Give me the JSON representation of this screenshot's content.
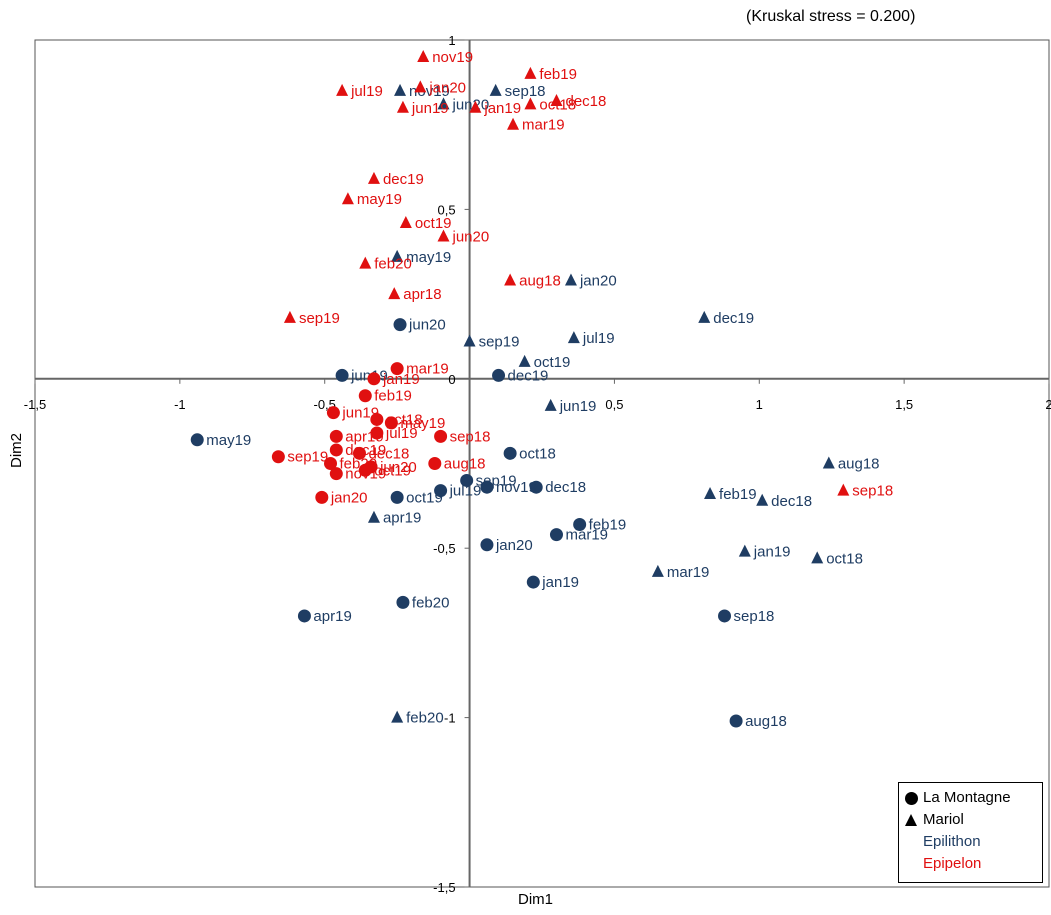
{
  "annotation": "(Kruskal stress  = 0.200)",
  "legend": {
    "site1": "La Montagne",
    "site2": "Mariol",
    "group1": "Epilithon",
    "group2": "Epipelon"
  },
  "colors": {
    "Epilithon": "#1f3d63",
    "Epipelon": "#e01010"
  },
  "chart_data": {
    "type": "scatter",
    "xlabel": "Dim1",
    "ylabel": "Dim2",
    "xlim": [
      -1.5,
      2
    ],
    "ylim": [
      -1.5,
      1
    ],
    "xticks": [
      {
        "v": -1.5,
        "t": "-1,5"
      },
      {
        "v": -1,
        "t": "-1"
      },
      {
        "v": -0.5,
        "t": "-0,5"
      },
      {
        "v": 0.5,
        "t": "0,5"
      },
      {
        "v": 1,
        "t": "1"
      },
      {
        "v": 1.5,
        "t": "1,5"
      },
      {
        "v": 2,
        "t": "2"
      }
    ],
    "yticks": [
      {
        "v": 1,
        "t": "1"
      },
      {
        "v": 0.5,
        "t": "0,5"
      },
      {
        "v": 0,
        "t": "0"
      },
      {
        "v": -0.5,
        "t": "-0,5"
      },
      {
        "v": -1,
        "t": "-1"
      },
      {
        "v": -1.5,
        "t": "-1,5"
      }
    ],
    "series": [
      {
        "name": "La Montagne - Epilithon",
        "site": "La Montagne",
        "group": "Epilithon",
        "points": [
          {
            "label": "may19",
            "x": -0.94,
            "y": -0.18
          },
          {
            "label": "apr19",
            "x": -0.57,
            "y": -0.7
          },
          {
            "label": "feb20",
            "x": -0.23,
            "y": -0.66
          },
          {
            "label": "aug18",
            "x": 0.92,
            "y": -1.01
          },
          {
            "label": "sep18",
            "x": 0.88,
            "y": -0.7
          },
          {
            "label": "jan19",
            "x": 0.22,
            "y": -0.6
          },
          {
            "label": "jan20",
            "x": 0.06,
            "y": -0.49
          },
          {
            "label": "mar19",
            "x": 0.3,
            "y": -0.46
          },
          {
            "label": "feb19",
            "x": 0.38,
            "y": -0.43
          },
          {
            "label": "dec18",
            "x": 0.23,
            "y": -0.32
          },
          {
            "label": "nov19",
            "x": 0.06,
            "y": -0.32
          },
          {
            "label": "sep19",
            "x": -0.01,
            "y": -0.3
          },
          {
            "label": "oct18",
            "x": 0.14,
            "y": -0.22
          },
          {
            "label": "jul19",
            "x": -0.1,
            "y": -0.33
          },
          {
            "label": "oct19",
            "x": -0.25,
            "y": -0.35
          },
          {
            "label": "jun20",
            "x": -0.24,
            "y": 0.16
          },
          {
            "label": "jun19",
            "x": -0.44,
            "y": 0.01
          },
          {
            "label": "dec19",
            "x": 0.1,
            "y": 0.01
          }
        ]
      },
      {
        "name": "Mariol - Epilithon",
        "site": "Mariol",
        "group": "Epilithon",
        "points": [
          {
            "label": "nov19",
            "x": -0.24,
            "y": 0.85
          },
          {
            "label": "jun20",
            "x": -0.09,
            "y": 0.81
          },
          {
            "label": "sep18",
            "x": 0.09,
            "y": 0.85
          },
          {
            "label": "may19",
            "x": -0.25,
            "y": 0.36
          },
          {
            "label": "jan20",
            "x": 0.35,
            "y": 0.29
          },
          {
            "label": "dec19",
            "x": 0.81,
            "y": 0.18
          },
          {
            "label": "jul19",
            "x": 0.36,
            "y": 0.12
          },
          {
            "label": "sep19",
            "x": 0.0,
            "y": 0.11
          },
          {
            "label": "oct19",
            "x": 0.19,
            "y": 0.05
          },
          {
            "label": "jun19",
            "x": 0.28,
            "y": -0.08
          },
          {
            "label": "aug18",
            "x": 1.24,
            "y": -0.25
          },
          {
            "label": "feb19",
            "x": 0.83,
            "y": -0.34
          },
          {
            "label": "dec18",
            "x": 1.01,
            "y": -0.36
          },
          {
            "label": "jan19",
            "x": 0.95,
            "y": -0.51
          },
          {
            "label": "oct18",
            "x": 1.2,
            "y": -0.53
          },
          {
            "label": "mar19",
            "x": 0.65,
            "y": -0.57
          },
          {
            "label": "apr19",
            "x": -0.33,
            "y": -0.41
          },
          {
            "label": "feb20",
            "x": -0.25,
            "y": -1.0
          }
        ]
      },
      {
        "name": "La Montagne - Epipelon",
        "site": "La Montagne",
        "group": "Epipelon",
        "points": [
          {
            "label": "jan19",
            "x": -0.33,
            "y": 0.0
          },
          {
            "label": "mar19",
            "x": -0.25,
            "y": 0.03
          },
          {
            "label": "feb19",
            "x": -0.36,
            "y": -0.05
          },
          {
            "label": "jun19",
            "x": -0.47,
            "y": -0.1
          },
          {
            "label": "oct18",
            "x": -0.32,
            "y": -0.12
          },
          {
            "label": "may19",
            "x": -0.27,
            "y": -0.13
          },
          {
            "label": "jul19",
            "x": -0.32,
            "y": -0.16
          },
          {
            "label": "apr19",
            "x": -0.46,
            "y": -0.17
          },
          {
            "label": "sep18",
            "x": -0.1,
            "y": -0.17
          },
          {
            "label": "dec19",
            "x": -0.46,
            "y": -0.21
          },
          {
            "label": "dec18",
            "x": -0.38,
            "y": -0.22
          },
          {
            "label": "aug18",
            "x": -0.12,
            "y": -0.25
          },
          {
            "label": "sep19",
            "x": -0.66,
            "y": -0.23
          },
          {
            "label": "feb20",
            "x": -0.48,
            "y": -0.25
          },
          {
            "label": "jun20",
            "x": -0.34,
            "y": -0.26
          },
          {
            "label": "oct19",
            "x": -0.36,
            "y": -0.27
          },
          {
            "label": "nov19",
            "x": -0.46,
            "y": -0.28
          },
          {
            "label": "jan20",
            "x": -0.51,
            "y": -0.35
          }
        ]
      },
      {
        "name": "Mariol - Epipelon",
        "site": "Mariol",
        "group": "Epipelon",
        "points": [
          {
            "label": "nov19",
            "x": -0.16,
            "y": 0.95
          },
          {
            "label": "jul19",
            "x": -0.44,
            "y": 0.85
          },
          {
            "label": "jan20",
            "x": -0.17,
            "y": 0.86
          },
          {
            "label": "feb19",
            "x": 0.21,
            "y": 0.9
          },
          {
            "label": "jun19",
            "x": -0.23,
            "y": 0.8
          },
          {
            "label": "dec18",
            "x": 0.3,
            "y": 0.82
          },
          {
            "label": "jan19",
            "x": 0.02,
            "y": 0.8
          },
          {
            "label": "oct18",
            "x": 0.21,
            "y": 0.81
          },
          {
            "label": "mar19",
            "x": 0.15,
            "y": 0.75
          },
          {
            "label": "dec19",
            "x": -0.33,
            "y": 0.59
          },
          {
            "label": "may19",
            "x": -0.42,
            "y": 0.53
          },
          {
            "label": "oct19",
            "x": -0.22,
            "y": 0.46
          },
          {
            "label": "jun20",
            "x": -0.09,
            "y": 0.42
          },
          {
            "label": "feb20",
            "x": -0.36,
            "y": 0.34
          },
          {
            "label": "aug18",
            "x": 0.14,
            "y": 0.29
          },
          {
            "label": "apr18",
            "x": -0.26,
            "y": 0.25
          },
          {
            "label": "sep19",
            "x": -0.62,
            "y": 0.18
          },
          {
            "label": "sep18",
            "x": 1.29,
            "y": -0.33
          }
        ]
      }
    ]
  }
}
